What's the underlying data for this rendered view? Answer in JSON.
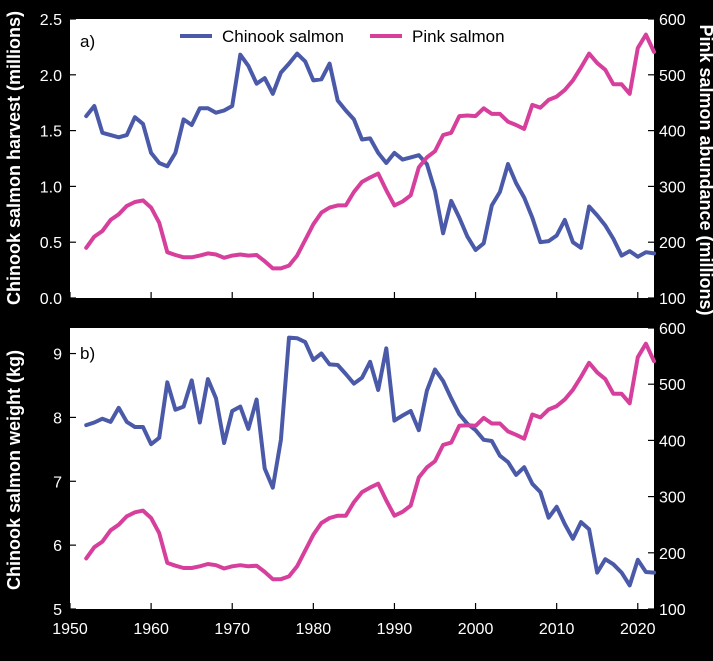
{
  "chart_data": [
    {
      "type": "line",
      "panel_label": "a)",
      "x_ticks": [
        1950,
        1960,
        1970,
        1980,
        1990,
        2000,
        2010,
        2020
      ],
      "xlim": [
        1950,
        2022
      ],
      "ylabel_left": "Chinook salmon harvest (millions)",
      "ylim_left": [
        0,
        2.5
      ],
      "yticks_left": [
        "0.0",
        "0.5",
        "1.0",
        "1.5",
        "2.0",
        "2.5"
      ],
      "ylabel_right": "Pink salmon abundance (millions)",
      "ylim_right": [
        100,
        600
      ],
      "yticks_right": [
        "100",
        "200",
        "300",
        "400",
        "500",
        "600"
      ],
      "legend": [
        {
          "label": "Chinook salmon",
          "color": "#4a5aa8"
        },
        {
          "label": "Pink salmon",
          "color": "#d6409c"
        }
      ],
      "series": [
        {
          "name": "Chinook salmon",
          "axis": "left",
          "color": "#4a5aa8",
          "x": [
            1952,
            1953,
            1954,
            1955,
            1956,
            1957,
            1958,
            1959,
            1960,
            1961,
            1962,
            1963,
            1964,
            1965,
            1966,
            1967,
            1968,
            1969,
            1970,
            1971,
            1972,
            1973,
            1974,
            1975,
            1976,
            1977,
            1978,
            1979,
            1980,
            1981,
            1982,
            1983,
            1984,
            1985,
            1986,
            1987,
            1988,
            1989,
            1990,
            1991,
            1992,
            1993,
            1994,
            1995,
            1996,
            1997,
            1998,
            1999,
            2000,
            2001,
            2002,
            2003,
            2004,
            2005,
            2006,
            2007,
            2008,
            2009,
            2010,
            2011,
            2012,
            2013,
            2014,
            2015,
            2016,
            2017,
            2018,
            2019,
            2020,
            2021,
            2022
          ],
          "values": [
            1.63,
            1.72,
            1.48,
            1.46,
            1.44,
            1.46,
            1.62,
            1.56,
            1.3,
            1.21,
            1.18,
            1.3,
            1.6,
            1.55,
            1.7,
            1.7,
            1.66,
            1.68,
            1.72,
            2.18,
            2.08,
            1.92,
            1.97,
            1.83,
            2.02,
            2.1,
            2.19,
            2.12,
            1.95,
            1.96,
            2.1,
            1.77,
            1.68,
            1.6,
            1.42,
            1.43,
            1.3,
            1.21,
            1.3,
            1.24,
            1.26,
            1.28,
            1.2,
            0.96,
            0.58,
            0.87,
            0.72,
            0.55,
            0.43,
            0.49,
            0.83,
            0.95,
            1.2,
            1.03,
            0.9,
            0.72,
            0.5,
            0.51,
            0.56,
            0.7,
            0.5,
            0.45,
            0.82,
            0.74,
            0.65,
            0.53,
            0.38,
            0.42,
            0.37,
            0.41,
            0.4
          ]
        },
        {
          "name": "Pink salmon",
          "axis": "right",
          "color": "#d6409c",
          "x": [
            1952,
            1953,
            1954,
            1955,
            1956,
            1957,
            1958,
            1959,
            1960,
            1961,
            1962,
            1963,
            1964,
            1965,
            1966,
            1967,
            1968,
            1969,
            1970,
            1971,
            1972,
            1973,
            1974,
            1975,
            1976,
            1977,
            1978,
            1979,
            1980,
            1981,
            1982,
            1983,
            1984,
            1985,
            1986,
            1987,
            1988,
            1989,
            1990,
            1991,
            1992,
            1993,
            1994,
            1995,
            1996,
            1997,
            1998,
            1999,
            2000,
            2001,
            2002,
            2003,
            2004,
            2005,
            2006,
            2007,
            2008,
            2009,
            2010,
            2011,
            2012,
            2013,
            2014,
            2015,
            2016,
            2017,
            2018,
            2019,
            2020,
            2021,
            2022
          ],
          "values": [
            190,
            210,
            220,
            240,
            250,
            265,
            272,
            275,
            262,
            235,
            182,
            177,
            173,
            173,
            176,
            180,
            178,
            172,
            176,
            178,
            176,
            177,
            166,
            153,
            153,
            158,
            176,
            204,
            232,
            253,
            262,
            266,
            266,
            290,
            308,
            316,
            323,
            293,
            266,
            273,
            284,
            334,
            352,
            363,
            392,
            396,
            426,
            427,
            426,
            440,
            430,
            430,
            416,
            410,
            403,
            446,
            441,
            455,
            461,
            473,
            490,
            513,
            538,
            521,
            509,
            483,
            483,
            466,
            548,
            572,
            541
          ]
        }
      ]
    },
    {
      "type": "line",
      "panel_label": "b)",
      "x_ticks": [
        1950,
        1960,
        1970,
        1980,
        1990,
        2000,
        2010,
        2020
      ],
      "xlim": [
        1950,
        2022
      ],
      "ylabel_left": "Chinook salmon weight (kg)",
      "ylim_left": [
        5,
        9.4
      ],
      "yticks_left": [
        "5",
        "6",
        "7",
        "8",
        "9"
      ],
      "ylabel_right": "",
      "ylim_right": [
        100,
        600
      ],
      "yticks_right": [
        "100",
        "200",
        "300",
        "400",
        "500",
        "600"
      ],
      "series": [
        {
          "name": "Chinook salmon",
          "axis": "left",
          "color": "#4a5aa8",
          "x": [
            1952,
            1953,
            1954,
            1955,
            1956,
            1957,
            1958,
            1959,
            1960,
            1961,
            1962,
            1963,
            1964,
            1965,
            1966,
            1967,
            1968,
            1969,
            1970,
            1971,
            1972,
            1973,
            1974,
            1975,
            1976,
            1977,
            1978,
            1979,
            1980,
            1981,
            1982,
            1983,
            1984,
            1985,
            1986,
            1987,
            1988,
            1989,
            1990,
            1991,
            1992,
            1993,
            1994,
            1995,
            1996,
            1997,
            1998,
            1999,
            2000,
            2001,
            2002,
            2003,
            2004,
            2005,
            2006,
            2007,
            2008,
            2009,
            2010,
            2011,
            2012,
            2013,
            2014,
            2015,
            2016,
            2017,
            2018,
            2019,
            2020,
            2021,
            2022
          ],
          "values": [
            7.88,
            7.92,
            7.98,
            7.93,
            8.15,
            7.93,
            7.85,
            7.85,
            7.58,
            7.68,
            8.55,
            8.12,
            8.17,
            8.58,
            7.92,
            8.6,
            8.3,
            7.6,
            8.1,
            8.17,
            7.82,
            8.28,
            7.2,
            6.9,
            7.65,
            9.25,
            9.24,
            9.18,
            8.9,
            9.0,
            8.83,
            8.82,
            8.68,
            8.53,
            8.62,
            8.87,
            8.43,
            9.08,
            7.95,
            8.03,
            8.1,
            7.8,
            8.42,
            8.75,
            8.57,
            8.3,
            8.05,
            7.9,
            7.8,
            7.65,
            7.63,
            7.4,
            7.3,
            7.1,
            7.22,
            6.96,
            6.83,
            6.43,
            6.6,
            6.33,
            6.1,
            6.36,
            6.25,
            5.57,
            5.78,
            5.7,
            5.57,
            5.37,
            5.77,
            5.58,
            5.57
          ]
        },
        {
          "name": "Pink salmon",
          "axis": "right",
          "color": "#d6409c",
          "x": [
            1952,
            1953,
            1954,
            1955,
            1956,
            1957,
            1958,
            1959,
            1960,
            1961,
            1962,
            1963,
            1964,
            1965,
            1966,
            1967,
            1968,
            1969,
            1970,
            1971,
            1972,
            1973,
            1974,
            1975,
            1976,
            1977,
            1978,
            1979,
            1980,
            1981,
            1982,
            1983,
            1984,
            1985,
            1986,
            1987,
            1988,
            1989,
            1990,
            1991,
            1992,
            1993,
            1994,
            1995,
            1996,
            1997,
            1998,
            1999,
            2000,
            2001,
            2002,
            2003,
            2004,
            2005,
            2006,
            2007,
            2008,
            2009,
            2010,
            2011,
            2012,
            2013,
            2014,
            2015,
            2016,
            2017,
            2018,
            2019,
            2020,
            2021,
            2022
          ],
          "values": [
            190,
            210,
            220,
            240,
            250,
            265,
            272,
            275,
            262,
            235,
            182,
            177,
            173,
            173,
            176,
            180,
            178,
            172,
            176,
            178,
            176,
            177,
            166,
            153,
            153,
            158,
            176,
            204,
            232,
            253,
            262,
            266,
            266,
            290,
            308,
            316,
            323,
            293,
            266,
            273,
            284,
            334,
            352,
            363,
            392,
            396,
            426,
            427,
            426,
            440,
            430,
            430,
            416,
            410,
            403,
            446,
            441,
            455,
            461,
            473,
            490,
            513,
            538,
            521,
            509,
            483,
            483,
            466,
            548,
            572,
            541
          ]
        }
      ]
    }
  ]
}
